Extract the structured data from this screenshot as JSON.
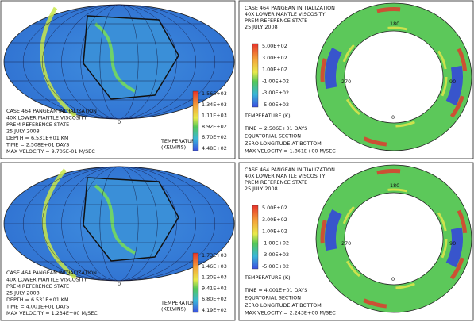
{
  "panels": [
    {
      "kind": "map",
      "caption": [
        "CASE 464 PANGEAN INITIALIZATION",
        "40X LOWER MANTLE VISCOSITY",
        "PREM REFERENCE STATE",
        "25 JULY 2008",
        "DEPTH = 6.531E+01 KM",
        "TIME = 2.508E+01 DAYS",
        "MAX VELOCITY = 9.705E-01 M/SEC"
      ],
      "zero_label": "0",
      "colorbar": {
        "title": [
          "TEMPERATURE",
          "(KELVINS)"
        ],
        "labels": [
          "1.56E+03",
          "1.34E+03",
          "1.11E+03",
          "8.92E+02",
          "6.70E+02",
          "4.48E+02"
        ]
      }
    },
    {
      "kind": "ring",
      "header": [
        "CASE 464 PANGEAN INITIALIZATION",
        "40X LOWER MANTLE VISCOSITY",
        "PREM REFERENCE STATE",
        "25 JULY 2008"
      ],
      "colorbar": {
        "title": [
          "TEMPERATURE (K)"
        ],
        "labels": [
          "5.00E+02",
          "3.00E+02",
          "1.00E+02",
          "-1.00E+02",
          "-3.00E+02",
          "-5.00E+02"
        ]
      },
      "caption": [
        "TIME = 2.506E+01 DAYS",
        "EQUATORIAL SECTION",
        "ZERO LONGITUDE AT BOTTOM",
        "MAX VELOCITY = 1.861E+00 M/SEC"
      ],
      "directions": [
        "180",
        "270",
        "90",
        "0"
      ]
    },
    {
      "kind": "map",
      "caption": [
        "CASE 464 PANGEAN INITIALIZATION",
        "40X LOWER MANTLE VISCOSITY",
        "PREM REFERENCE STATE",
        "25 JULY 2008",
        "DEPTH = 6.531E+01 KM",
        "TIME = 4.001E+01 DAYS",
        "MAX VELOCITY = 1.234E+00 M/SEC"
      ],
      "zero_label": "0",
      "colorbar": {
        "title": [
          "TEMPERATURE",
          "(KELVINS)"
        ],
        "labels": [
          "1.73E+03",
          "1.46E+03",
          "1.20E+03",
          "9.41E+02",
          "6.80E+02",
          "4.19E+02"
        ]
      }
    },
    {
      "kind": "ring",
      "header": [
        "CASE 464 PANGEAN INITIALIZATION",
        "40X LOWER MANTLE VISCOSITY",
        "PREM REFERENCE STATE",
        "25 JULY 2008"
      ],
      "colorbar": {
        "title": [
          "TEMPERATURE (K)"
        ],
        "labels": [
          "5.00E+02",
          "3.00E+02",
          "1.00E+02",
          "-1.00E+02",
          "-3.00E+02",
          "-5.00E+02"
        ]
      },
      "caption": [
        "TIME = 4.001E+01 DAYS",
        "EQUATORIAL SECTION",
        "ZERO LONGITUDE AT BOTTOM",
        "MAX VELOCITY = 2.243E+00 M/SEC"
      ],
      "directions": [
        "180",
        "270",
        "90",
        "0"
      ]
    }
  ]
}
